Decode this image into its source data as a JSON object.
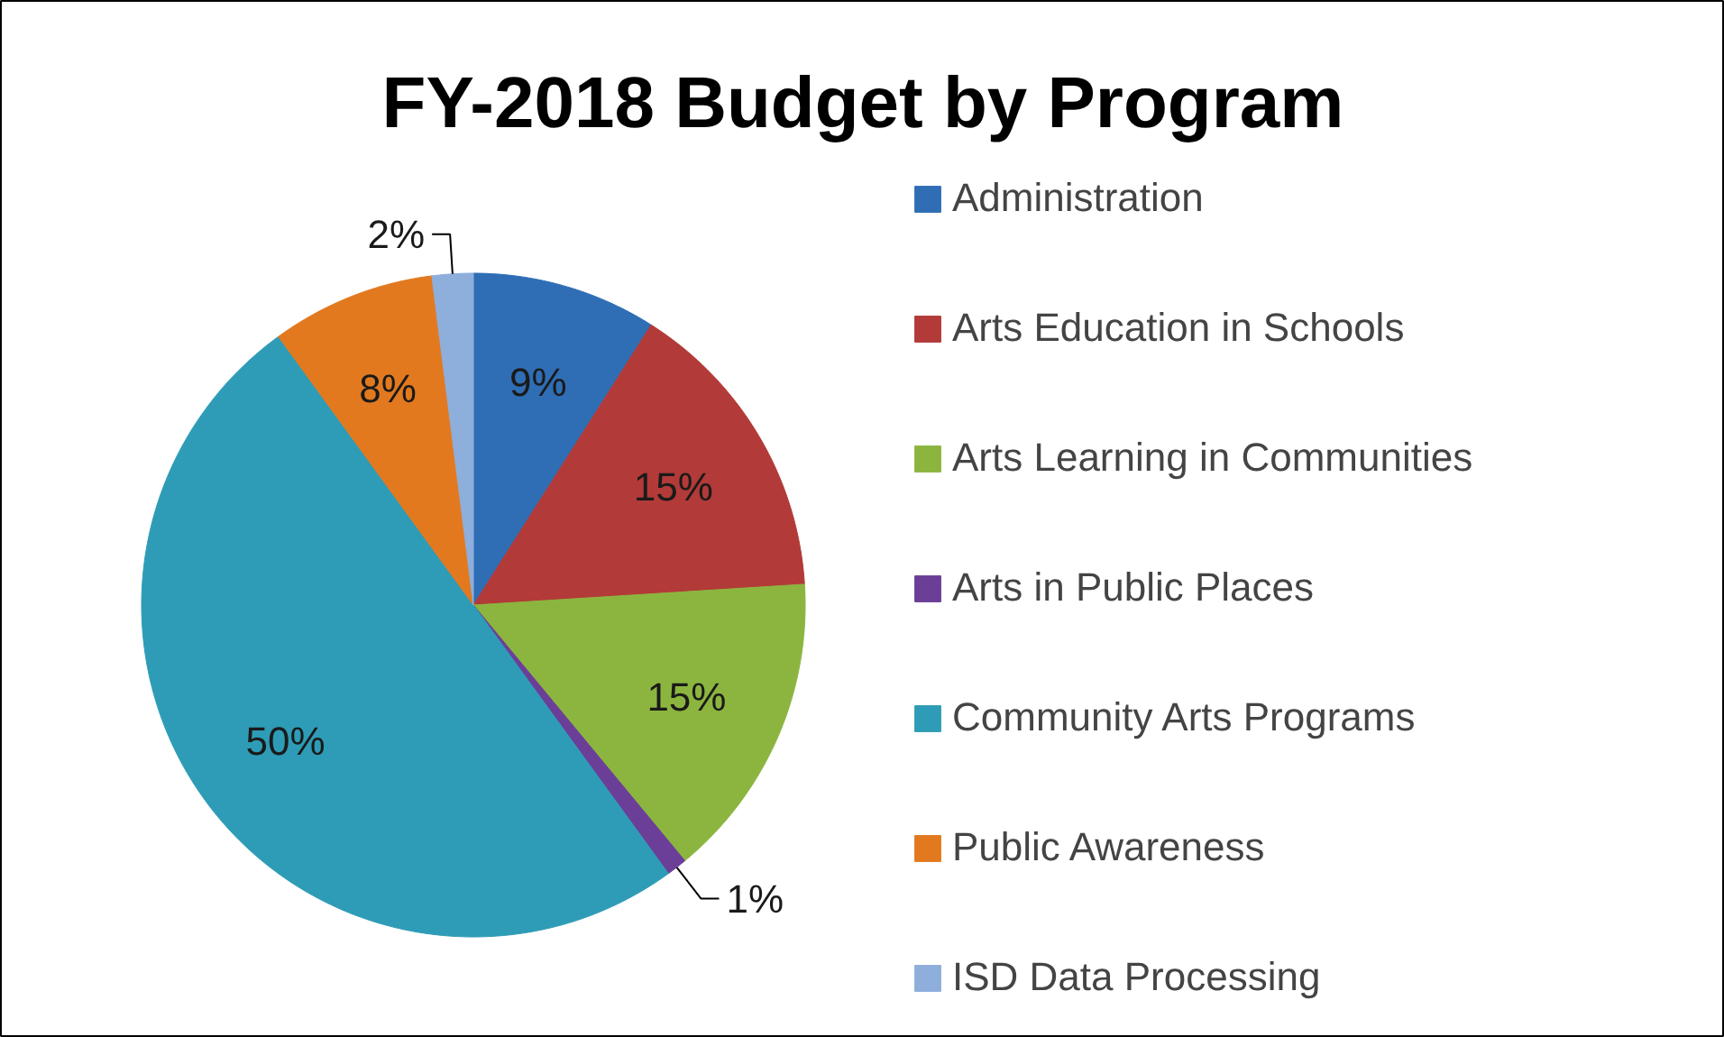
{
  "chart_data": {
    "type": "pie",
    "title": "FY-2018 Budget by Program",
    "categories": [
      "Administration",
      "Arts Education in Schools",
      "Arts Learning in Communities",
      "Arts in Public Places",
      "Community Arts Programs",
      "Public Awareness",
      "ISD Data Processing"
    ],
    "values": [
      9,
      15,
      15,
      1,
      50,
      8,
      2
    ],
    "value_labels": [
      "9%",
      "15%",
      "15%",
      "1%",
      "50%",
      "8%",
      "2%"
    ],
    "colors": [
      "#2f6eb5",
      "#b23a38",
      "#8cb53f",
      "#6b3f98",
      "#2e9cb6",
      "#e2791f",
      "#8eaedc"
    ],
    "legend": "right"
  }
}
